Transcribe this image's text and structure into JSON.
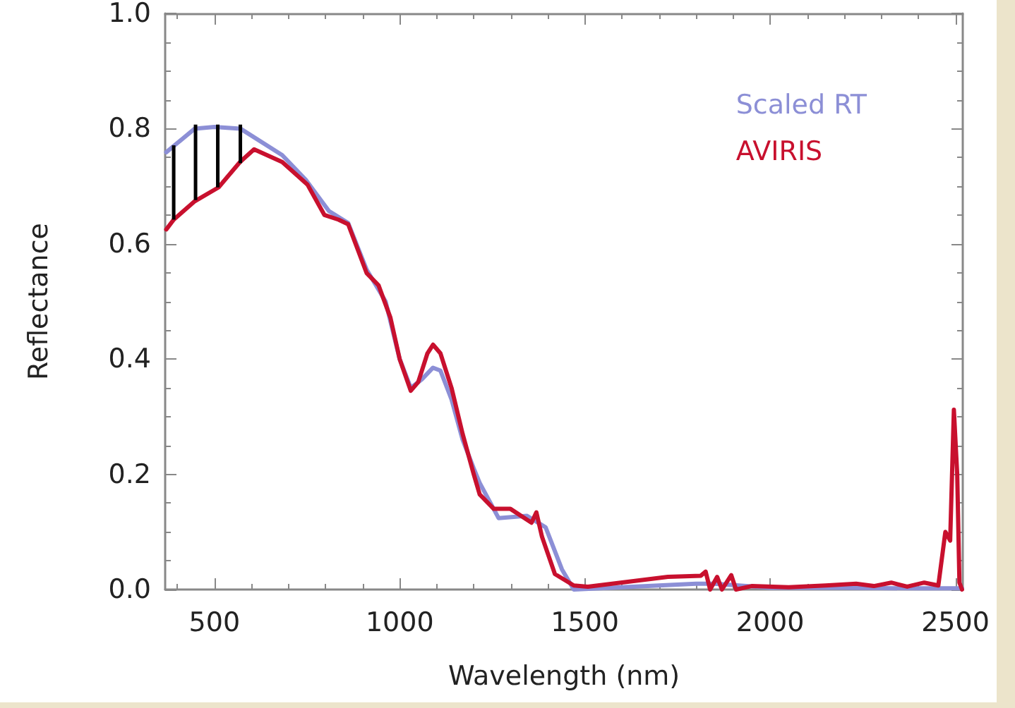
{
  "chart_data": {
    "type": "line",
    "xlabel": "Wavelength (nm)",
    "ylabel": "Reflectance",
    "xlim": [
      367,
      2520
    ],
    "ylim": [
      0,
      1
    ],
    "xticks": [
      500,
      1000,
      1500,
      2000,
      2500
    ],
    "yticks": [
      {
        "value": 0,
        "label": "0.0"
      },
      {
        "value": 0.2,
        "label": "0.2"
      },
      {
        "value": 0.4,
        "label": "0.4"
      },
      {
        "value": 0.6,
        "label": "0.6"
      },
      {
        "value": 0.8,
        "label": "0.8"
      },
      {
        "value": 1,
        "label": "1.0"
      }
    ],
    "grid": false,
    "legend": "top right",
    "marker": "none",
    "line_style": "solid",
    "series": [
      {
        "name": "Scaled RT",
        "color": "#8c8fd6",
        "x": [
          370,
          447,
          500,
          570,
          683,
          748,
          809,
          861,
          911,
          962,
          1000,
          1030,
          1060,
          1090,
          1110,
          1140,
          1170,
          1200,
          1216,
          1267,
          1343,
          1394,
          1438,
          1470,
          1600,
          1800,
          1850,
          2000,
          2200,
          2400,
          2518
        ],
        "values": [
          0.759,
          0.8,
          0.803,
          0.8,
          0.754,
          0.71,
          0.657,
          0.636,
          0.555,
          0.5,
          0.4,
          0.35,
          0.365,
          0.385,
          0.38,
          0.33,
          0.26,
          0.21,
          0.185,
          0.124,
          0.128,
          0.108,
          0.035,
          0.0,
          0.004,
          0.01,
          0.01,
          0.003,
          0.003,
          0.002,
          0.002
        ]
      },
      {
        "name": "AVIRIS",
        "color": "#c8102e",
        "x": [
          370,
          390,
          447,
          511,
          569,
          607,
          683,
          751,
          797,
          835,
          861,
          911,
          943,
          975,
          1000,
          1030,
          1050,
          1075,
          1090,
          1110,
          1140,
          1170,
          1200,
          1216,
          1254,
          1299,
          1356,
          1369,
          1384,
          1419,
          1470,
          1508,
          1724,
          1813,
          1826,
          1838,
          1857,
          1870,
          1895,
          1908,
          1950,
          2050,
          2150,
          2232,
          2280,
          2327,
          2370,
          2416,
          2454,
          2473,
          2486,
          2496,
          2505,
          2511,
          2518
        ],
        "values": [
          0.625,
          0.642,
          0.674,
          0.698,
          0.742,
          0.764,
          0.742,
          0.703,
          0.65,
          0.642,
          0.634,
          0.549,
          0.528,
          0.472,
          0.4,
          0.345,
          0.36,
          0.41,
          0.425,
          0.41,
          0.35,
          0.27,
          0.2,
          0.165,
          0.14,
          0.14,
          0.116,
          0.134,
          0.092,
          0.027,
          0.007,
          0.005,
          0.022,
          0.024,
          0.031,
          0.0,
          0.022,
          0.0,
          0.025,
          0.0,
          0.006,
          0.004,
          0.007,
          0.01,
          0.006,
          0.012,
          0.005,
          0.012,
          0.007,
          0.1,
          0.085,
          0.312,
          0.2,
          0.012,
          0.0
        ]
      },
      {
        "type": "bar",
        "color": "#000000",
        "x": [
          390,
          449,
          509,
          570
        ],
        "base": [
          0.642,
          0.676,
          0.698,
          0.74
        ],
        "values": [
          0.129,
          0.131,
          0.109,
          0.067
        ]
      }
    ]
  }
}
